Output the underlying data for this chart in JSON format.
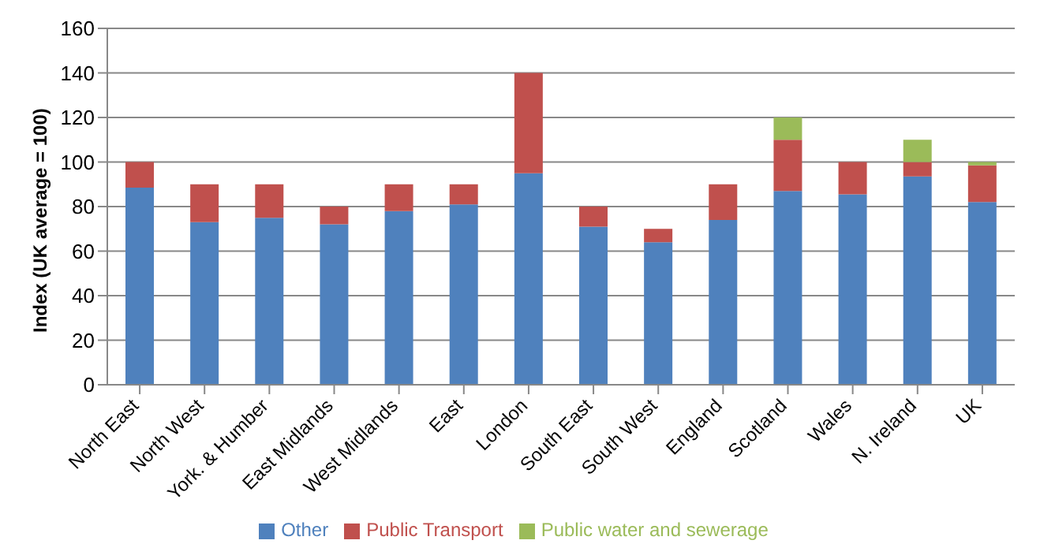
{
  "chart_data": {
    "type": "bar",
    "stacked": true,
    "ylabel": "Index (UK average = 100)",
    "categories": [
      "North East",
      "North West",
      "York. & Humber",
      "East Midlands",
      "West Midlands",
      "East",
      "London",
      "South East",
      "South West",
      "England",
      "Scotland",
      "Wales",
      "N. Ireland",
      "UK"
    ],
    "series": [
      {
        "name": "Other",
        "color": "#4f81bd",
        "values": [
          88.5,
          73,
          75,
          72,
          78,
          81,
          95,
          71,
          64,
          74,
          87,
          85.5,
          93.5,
          82
        ]
      },
      {
        "name": "Public Transport",
        "color": "#c0504d",
        "values": [
          11.5,
          17,
          15,
          8,
          12,
          9,
          45,
          9,
          6,
          16,
          23,
          14.5,
          6.5,
          16.5
        ]
      },
      {
        "name": "Public water and sewerage",
        "color": "#9bbb59",
        "values": [
          0,
          0,
          0,
          0,
          0,
          0,
          0,
          0,
          0,
          0,
          10,
          0,
          10,
          1.5
        ]
      }
    ],
    "ylim": [
      0,
      160
    ],
    "yticks": [
      0,
      20,
      40,
      60,
      80,
      100,
      120,
      140,
      160
    ],
    "grid": "y",
    "legend": "bottom"
  }
}
